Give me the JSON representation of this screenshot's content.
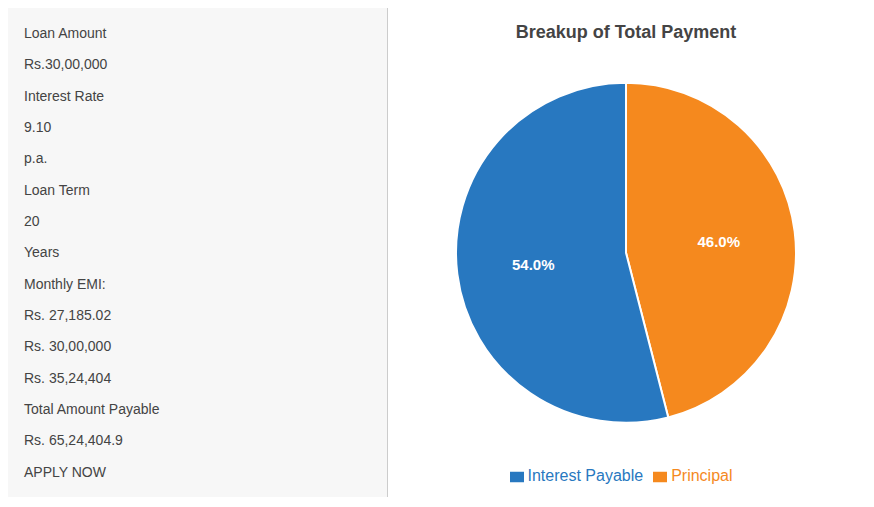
{
  "chart_data": {
    "type": "pie",
    "title": "Breakup of Total Payment",
    "categories": [
      "Principal",
      "Interest Payable"
    ],
    "values": [
      46.0,
      54.0
    ],
    "value_labels": [
      "46.0%",
      "54.0%"
    ],
    "colors": [
      "#f5891e",
      "#2878c0"
    ],
    "data_labels": true,
    "legend": "bottom",
    "annotations": [
      "Loan Amount",
      "Rs.30,00,000",
      "Interest Rate",
      "9.10",
      "p.a.",
      "Loan Term",
      "20",
      "Years",
      "Monthly EMI:",
      "Rs. 27,185.02",
      "Rs. 30,00,000",
      "Rs. 35,24,404",
      "Total Amount Payable",
      "Rs. 65,24,404.9",
      "APPLY NOW"
    ]
  }
}
